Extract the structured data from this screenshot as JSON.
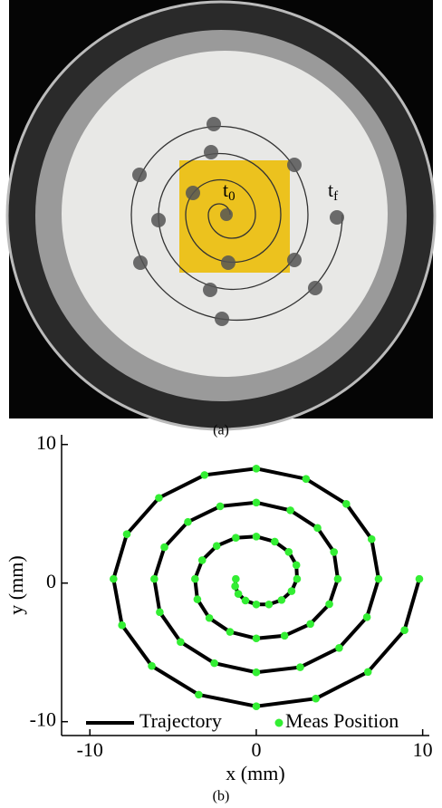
{
  "panel_a": {
    "caption": "(a)",
    "annotations": [
      {
        "text": "t",
        "sub": "0"
      },
      {
        "text": "t",
        "sub": "f"
      }
    ]
  },
  "chart_data": {
    "type": "line",
    "caption": "(b)",
    "xlabel": "x (mm)",
    "ylabel": "y (mm)",
    "xlim": [
      -11.7,
      10.4
    ],
    "ylim": [
      -11,
      10.7
    ],
    "xticks": [
      -10,
      0,
      10
    ],
    "yticks": [
      -10,
      0,
      10
    ],
    "legend": "bottom",
    "series": [
      {
        "name": "Trajectory",
        "color": "#000000",
        "x": [
          -1.23,
          -1.27,
          -1.08,
          -0.65,
          0,
          0.76,
          1.52,
          2.12,
          2.45,
          2.41,
          1.95,
          1.11,
          0,
          -1.23,
          -2.38,
          -3.25,
          -3.68,
          -3.54,
          -2.82,
          -1.58,
          0,
          1.7,
          3.25,
          4.39,
          4.9,
          4.67,
          3.68,
          2.05,
          0,
          -2.17,
          -4.11,
          -5.52,
          -6.13,
          -5.8,
          -4.55,
          -2.52,
          0,
          2.64,
          4.98,
          6.65,
          7.35,
          6.93,
          5.41,
          2.99,
          0,
          -3.11,
          -5.85,
          -7.78,
          -8.58,
          -8.07,
          -6.28,
          -3.46,
          0,
          3.58,
          6.71,
          8.91,
          9.8
        ],
        "values": [
          0.3,
          -0.23,
          -0.78,
          -1.26,
          -1.54,
          -1.54,
          -1.22,
          -0.58,
          0.3,
          1.3,
          2.25,
          2.99,
          3.36,
          3.27,
          2.68,
          1.65,
          0.3,
          -1.17,
          -2.52,
          -3.52,
          -3.99,
          -3.8,
          -2.95,
          -1.52,
          0.3,
          2.24,
          3.98,
          5.25,
          5.81,
          5.54,
          4.41,
          2.59,
          0.3,
          -2.1,
          -4.25,
          -5.78,
          -6.44,
          -6.07,
          -4.68,
          -2.46,
          0.3,
          3.17,
          5.71,
          7.52,
          8.26,
          7.8,
          6.15,
          3.53,
          0.3,
          -3.04,
          -5.98,
          -8.05,
          -8.89,
          -8.33,
          -6.41,
          -3.4,
          0.3
        ]
      },
      {
        "name": "Meas Position",
        "color": "#33ee33",
        "x": [
          -1.23,
          -1.27,
          -1.08,
          -0.65,
          0,
          0.76,
          1.52,
          2.12,
          2.45,
          2.41,
          1.95,
          1.11,
          0,
          -1.23,
          -2.38,
          -3.25,
          -3.68,
          -3.54,
          -2.82,
          -1.58,
          0,
          1.7,
          3.25,
          4.39,
          4.9,
          4.67,
          3.68,
          2.05,
          0,
          -2.17,
          -4.11,
          -5.52,
          -6.13,
          -5.8,
          -4.55,
          -2.52,
          0,
          2.64,
          4.98,
          6.65,
          7.35,
          6.93,
          5.41,
          2.99,
          0,
          -3.11,
          -5.85,
          -7.78,
          -8.58,
          -8.07,
          -6.28,
          -3.46,
          0,
          3.58,
          6.71,
          8.91,
          9.8
        ],
        "values": [
          0.3,
          -0.23,
          -0.78,
          -1.26,
          -1.54,
          -1.54,
          -1.22,
          -0.58,
          0.3,
          1.3,
          2.25,
          2.99,
          3.36,
          3.27,
          2.68,
          1.65,
          0.3,
          -1.17,
          -2.52,
          -3.52,
          -3.99,
          -3.8,
          -2.95,
          -1.52,
          0.3,
          2.24,
          3.98,
          5.25,
          5.81,
          5.54,
          4.41,
          2.59,
          0.3,
          -2.1,
          -4.25,
          -5.78,
          -6.44,
          -6.07,
          -4.68,
          -2.46,
          0.3,
          3.17,
          5.71,
          7.52,
          8.26,
          7.8,
          6.15,
          3.53,
          0.3,
          -3.04,
          -5.98,
          -8.05,
          -8.89,
          -8.33,
          -6.41,
          -3.4,
          0.3
        ]
      }
    ]
  }
}
